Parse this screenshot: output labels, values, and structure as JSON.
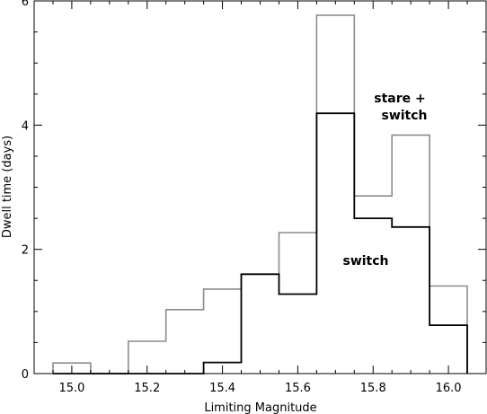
{
  "chart_data": {
    "type": "histogram",
    "xlabel": "Limiting Magnitude",
    "ylabel": "Dwell time (days)",
    "xlim": [
      14.9,
      16.1
    ],
    "ylim": [
      0,
      6
    ],
    "x_ticks": [
      "15.0",
      "15.2",
      "15.4",
      "15.6",
      "15.8",
      "16.0"
    ],
    "y_ticks": [
      "0",
      "2",
      "4",
      "6"
    ],
    "bin_edges": [
      14.95,
      15.05,
      15.15,
      15.25,
      15.35,
      15.45,
      15.55,
      15.65,
      15.75,
      15.85,
      15.95,
      16.05
    ],
    "series": [
      {
        "name": "stare + switch",
        "color": "#8c8c8c",
        "values": [
          0.17,
          0.0,
          0.52,
          1.03,
          1.36,
          1.6,
          2.27,
          5.77,
          2.86,
          3.84,
          1.41
        ]
      },
      {
        "name": "switch",
        "color": "#000000",
        "values": [
          0.0,
          0.0,
          0.0,
          0.0,
          0.18,
          1.6,
          1.28,
          4.19,
          2.5,
          2.36,
          0.78
        ]
      }
    ],
    "annotations": [
      "stare +",
      "switch",
      "switch"
    ]
  }
}
